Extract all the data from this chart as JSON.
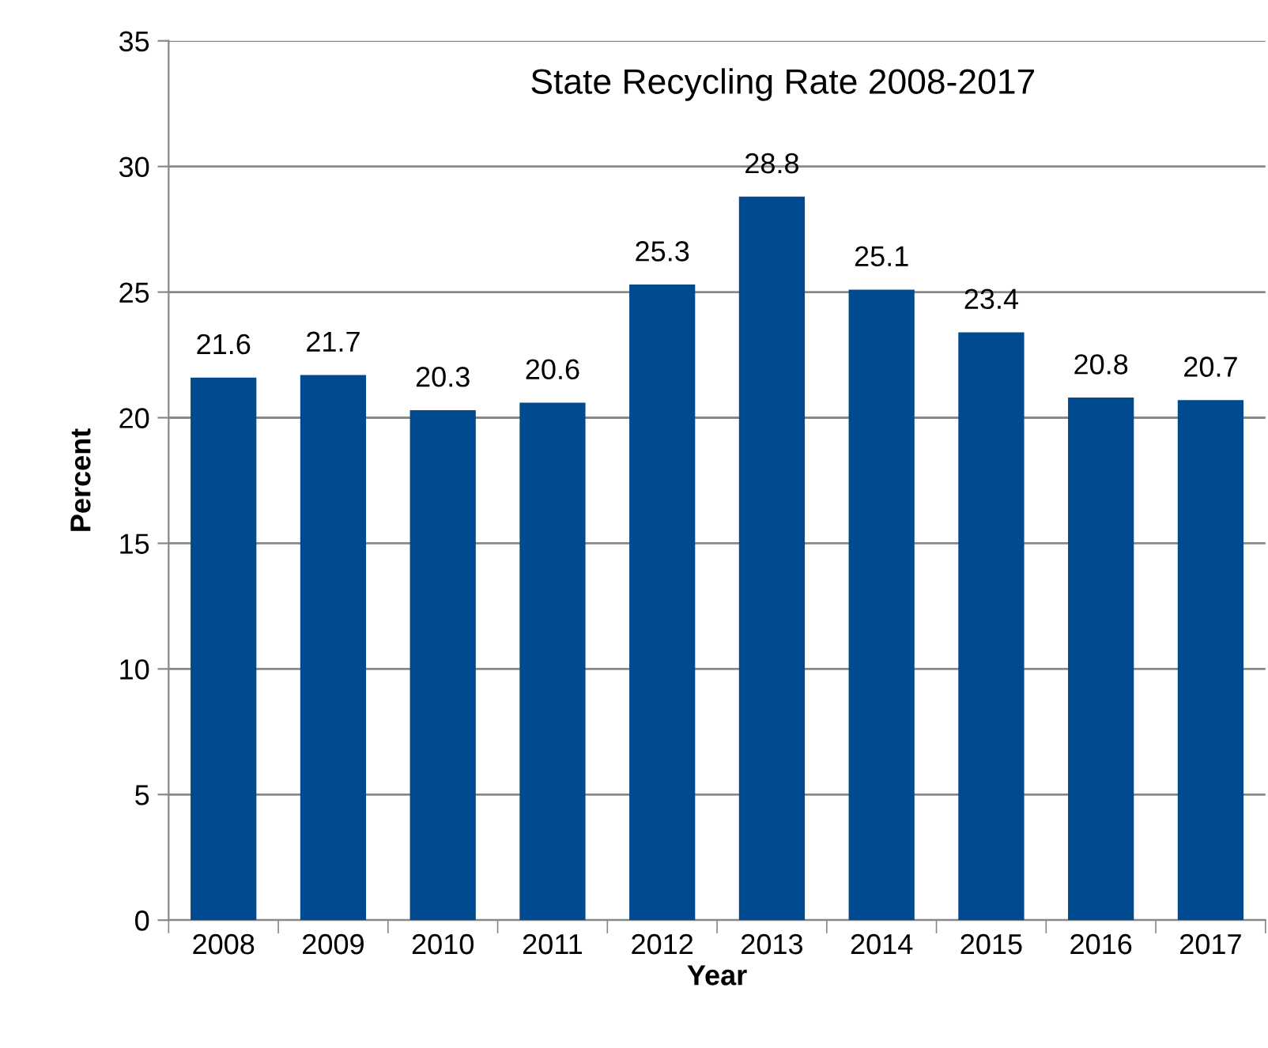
{
  "chart_data": {
    "type": "bar",
    "title": "State Recycling Rate 2008-2017",
    "xlabel": "Year",
    "ylabel": "Percent",
    "categories": [
      "2008",
      "2009",
      "2010",
      "2011",
      "2012",
      "2013",
      "2014",
      "2015",
      "2016",
      "2017"
    ],
    "values": [
      21.6,
      21.7,
      20.3,
      20.6,
      25.3,
      28.8,
      25.1,
      23.4,
      20.8,
      20.7
    ],
    "color": "#004a8f",
    "ylim": [
      0,
      35
    ],
    "yticks": [
      0,
      5,
      10,
      15,
      20,
      25,
      30,
      35
    ],
    "grid": "y",
    "data_labels": true
  }
}
